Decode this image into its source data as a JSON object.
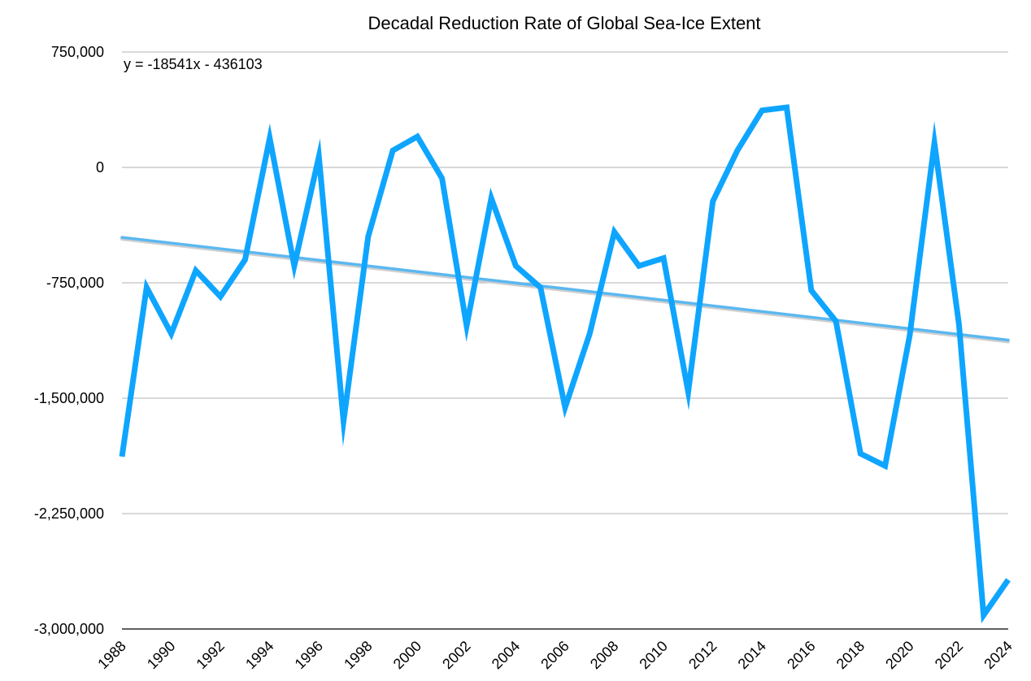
{
  "chart_data": {
    "type": "line",
    "title": "Decadal Reduction Rate of Global Sea-Ice Extent",
    "xlabel": "",
    "ylabel": "",
    "trendline_label": "y = -18541x - 436103",
    "trendline": {
      "slope": -18541,
      "intercept": -436103
    },
    "xlim": [
      1988,
      2024
    ],
    "ylim": [
      -3000000,
      750000
    ],
    "y_ticks": [
      750000,
      0,
      -750000,
      -1500000,
      -2250000,
      -3000000
    ],
    "y_tick_labels": [
      "750,000",
      "0",
      "-750,000",
      "-1,500,000",
      "-2,250,000",
      "-3,000,000"
    ],
    "x_ticks": [
      1988,
      1990,
      1992,
      1994,
      1996,
      1998,
      2000,
      2002,
      2004,
      2006,
      2008,
      2010,
      2012,
      2014,
      2016,
      2018,
      2020,
      2022,
      2024
    ],
    "x_tick_labels": [
      "1988",
      "1990",
      "1992",
      "1994",
      "1996",
      "1998",
      "2000",
      "2002",
      "2004",
      "2006",
      "2008",
      "2010",
      "2012",
      "2014",
      "2016",
      "2018",
      "2020",
      "2022",
      "2024"
    ],
    "grid": true,
    "series": [
      {
        "color": "#0ea5ff",
        "x": [
          1988,
          1989,
          1990,
          1991,
          1992,
          1993,
          1994,
          1995,
          1996,
          1997,
          1998,
          1999,
          2000,
          2001,
          2002,
          2003,
          2004,
          2005,
          2006,
          2007,
          2008,
          2009,
          2010,
          2011,
          2012,
          2013,
          2014,
          2015,
          2016,
          2017,
          2018,
          2019,
          2020,
          2021,
          2022,
          2023,
          2024
        ],
        "y": [
          -1880000,
          -780000,
          -1080000,
          -670000,
          -840000,
          -600000,
          190000,
          -640000,
          70000,
          -1650000,
          -450000,
          110000,
          200000,
          -70000,
          -1030000,
          -200000,
          -640000,
          -780000,
          -1560000,
          -1080000,
          -420000,
          -640000,
          -590000,
          -1460000,
          -220000,
          110000,
          370000,
          390000,
          -800000,
          -1000000,
          -1860000,
          -1940000,
          -1090000,
          160000,
          -1020000,
          -2910000,
          -2680000
        ]
      }
    ],
    "trend_color": "#5bb8f0"
  },
  "colors": {
    "line": "#0ea5ff",
    "trend": "#5bb8f0",
    "grid": "#b3b3b3",
    "axis": "#000000"
  }
}
